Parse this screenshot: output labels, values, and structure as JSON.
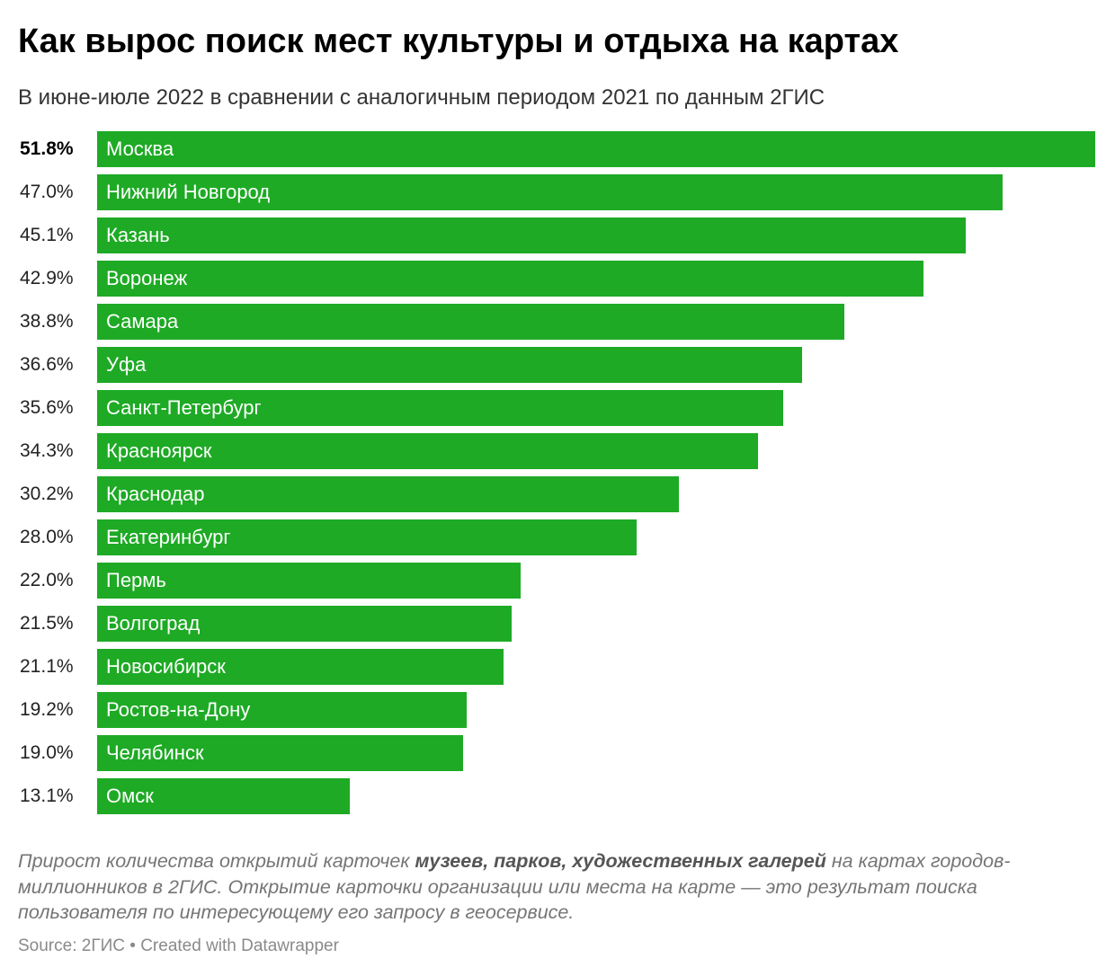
{
  "title": "Как вырос поиск мест культуры и отдыха на картах",
  "subtitle": "В июне-июле 2022 в сравнении с аналогичным периодом 2021 по данным 2ГИС",
  "colors": {
    "bar": "#1eaa25",
    "label": "#ffffff"
  },
  "chart_data": {
    "type": "bar",
    "orientation": "horizontal",
    "title": "Как вырос поиск мест культуры и отдыха на картах",
    "subtitle": "В июне-июле 2022 в сравнении с аналогичным периодом 2021 по данным 2ГИС",
    "xlabel": "",
    "ylabel": "",
    "unit": "%",
    "xlim": [
      0,
      51.8
    ],
    "grid": false,
    "legend": "none",
    "categories": [
      "Москва",
      "Нижний Новгород",
      "Казань",
      "Воронеж",
      "Самара",
      "Уфа",
      "Санкт-Петербург",
      "Красноярск",
      "Краснодар",
      "Екатеринбург",
      "Пермь",
      "Волгоград",
      "Новосибирск",
      "Ростов-на-Дону",
      "Челябинск",
      "Омск"
    ],
    "values": [
      51.8,
      47.0,
      45.1,
      42.9,
      38.8,
      36.6,
      35.6,
      34.3,
      30.2,
      28.0,
      22.0,
      21.5,
      21.1,
      19.2,
      19.0,
      13.1
    ],
    "value_labels": [
      "51.8%",
      "47.0%",
      "45.1%",
      "42.9%",
      "38.8%",
      "36.6%",
      "35.6%",
      "34.3%",
      "30.2%",
      "28.0%",
      "22.0%",
      "21.5%",
      "21.1%",
      "19.2%",
      "19.0%",
      "13.1%"
    ]
  },
  "notes": {
    "part1": "Прирост количества открытий карточек ",
    "emphasis": "музеев, парков, художественных галерей",
    "part2": " на картах городов-миллионников в 2ГИС. Открытие карточки организации или места на карте — это результат поиска пользователя по интересующему его запросу в геосервисе."
  },
  "source": "Source: 2ГИС • Created with Datawrapper"
}
